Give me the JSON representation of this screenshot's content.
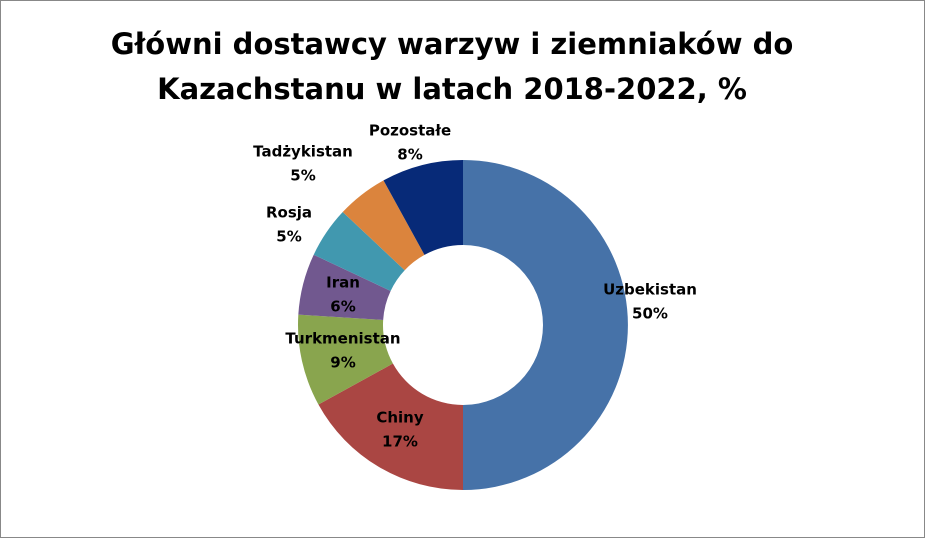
{
  "chart_data": {
    "type": "donut",
    "title": "Główni dostawcy warzyw i ziemniaków do",
    "subtitle": "Kazachstanu w latach 2018-2022, %",
    "categories": [
      "Uzbekistan",
      "Chiny",
      "Turkmenistan",
      "Iran",
      "Rosja",
      "Tadżykistan",
      "Pozostałe"
    ],
    "values": [
      50,
      17,
      9,
      6,
      5,
      5,
      8
    ],
    "value_labels": [
      "50%",
      "17%",
      "9%",
      "6%",
      "5%",
      "5%",
      "8%"
    ],
    "colors": [
      "#4672a8",
      "#aa4643",
      "#89a54e",
      "#71588f",
      "#4198af",
      "#db843d",
      "#072a78"
    ]
  }
}
